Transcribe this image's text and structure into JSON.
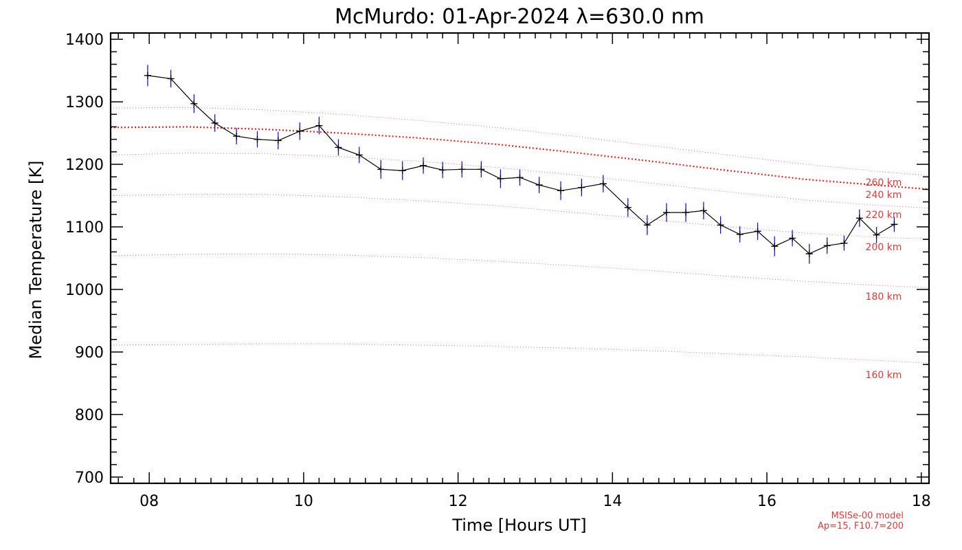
{
  "chart_data": {
    "type": "line",
    "title": "McMurdo: 01-Apr-2024 λ=630.0 nm",
    "xlabel": "Time [Hours UT]",
    "ylabel": "Median Temperature [K]",
    "xlim": [
      7.5,
      18.1
    ],
    "ylim": [
      690,
      1410
    ],
    "x_ticks": [
      8,
      10,
      12,
      14,
      16,
      18
    ],
    "x_tick_labels": [
      "08",
      "10",
      "12",
      "14",
      "16",
      "18"
    ],
    "y_ticks": [
      700,
      800,
      900,
      1000,
      1100,
      1200,
      1300,
      1400
    ],
    "y_tick_labels": [
      "700",
      "800",
      "900",
      "1000",
      "1100",
      "1200",
      "1300",
      "1400"
    ],
    "grid": false,
    "series": [
      {
        "x": [
          7.98,
          8.28,
          8.58,
          8.85,
          9.13,
          9.4,
          9.67,
          9.95,
          10.2,
          10.45,
          10.72,
          11.0,
          11.28,
          11.55,
          11.8,
          12.05,
          12.3,
          12.55,
          12.8,
          13.05,
          13.33,
          13.6,
          13.88,
          14.2,
          14.45,
          14.7,
          14.95,
          15.18,
          15.4,
          15.65,
          15.88,
          16.1,
          16.33,
          16.55,
          16.78,
          17.0,
          17.2,
          17.42,
          17.65
        ],
        "values": [
          1342,
          1337,
          1297,
          1266,
          1245,
          1240,
          1238,
          1253,
          1262,
          1227,
          1215,
          1192,
          1190,
          1198,
          1191,
          1192,
          1192,
          1177,
          1179,
          1167,
          1158,
          1163,
          1169,
          1131,
          1103,
          1123,
          1123,
          1126,
          1103,
          1088,
          1093,
          1069,
          1082,
          1057,
          1070,
          1074,
          1114,
          1087,
          1104
        ],
        "error": [
          17,
          14,
          15,
          14,
          13,
          13,
          14,
          14,
          14,
          13,
          13,
          15,
          15,
          13,
          13,
          13,
          13,
          15,
          13,
          13,
          15,
          14,
          14,
          15,
          16,
          15,
          15,
          14,
          14,
          13,
          14,
          16,
          13,
          16,
          13,
          12,
          14,
          13,
          12
        ],
        "color": "#000000",
        "error_color": "#0000ff"
      }
    ],
    "model_curves": [
      {
        "label": "260 km",
        "x": [
          7.5,
          8.5,
          9.5,
          10.5,
          11.5,
          12.5,
          13.5,
          14.5,
          15.5,
          16.5,
          17.5,
          18.1
        ],
        "values": [
          1259,
          1260,
          1256,
          1250,
          1242,
          1232,
          1219,
          1205,
          1190,
          1176,
          1166,
          1160
        ],
        "color": "#e8201c",
        "emphasis": true
      },
      {
        "label": "240 km",
        "x": [
          7.5,
          8.5,
          9.5,
          10.5,
          11.5,
          12.5,
          13.5,
          14.5,
          15.5,
          16.5,
          17.5,
          18.1
        ],
        "values": [
          1290,
          1291,
          1287,
          1280,
          1270,
          1259,
          1245,
          1230,
          1215,
          1200,
          1188,
          1182
        ]
      },
      {
        "label": "220 km",
        "x": [
          7.5,
          8.5,
          9.5,
          10.5,
          11.5,
          12.5,
          13.5,
          14.5,
          15.5,
          16.5,
          17.5,
          18.1
        ],
        "values": [
          1215,
          1218,
          1217,
          1212,
          1205,
          1195,
          1183,
          1170,
          1156,
          1143,
          1134,
          1130
        ]
      },
      {
        "label": "200 km",
        "x": [
          7.5,
          8.5,
          9.5,
          10.5,
          11.5,
          12.5,
          13.5,
          14.5,
          15.5,
          16.5,
          17.5,
          18.1
        ],
        "values": [
          1150,
          1152,
          1152,
          1148,
          1142,
          1134,
          1123,
          1112,
          1100,
          1090,
          1083,
          1081
        ]
      },
      {
        "label": "180 km",
        "x": [
          7.5,
          8.5,
          9.5,
          10.5,
          11.5,
          12.5,
          13.5,
          14.5,
          15.5,
          16.5,
          17.5,
          18.1
        ],
        "values": [
          1054,
          1056,
          1057,
          1055,
          1051,
          1045,
          1038,
          1030,
          1021,
          1013,
          1006,
          1003
        ]
      },
      {
        "label": "160 km",
        "x": [
          7.5,
          8.5,
          9.5,
          10.5,
          11.5,
          12.5,
          13.5,
          14.5,
          15.5,
          16.5,
          17.5,
          18.1
        ],
        "values": [
          911,
          912,
          913,
          913,
          911,
          909,
          906,
          902,
          897,
          892,
          886,
          882
        ]
      }
    ],
    "model_labels": [
      "260 km",
      "240 km",
      "220 km",
      "200 km",
      "180 km",
      "160 km"
    ],
    "model_color": "#e0393a",
    "notes": [
      "MSISe-00 model",
      "Ap=15, F10.7=200"
    ]
  }
}
